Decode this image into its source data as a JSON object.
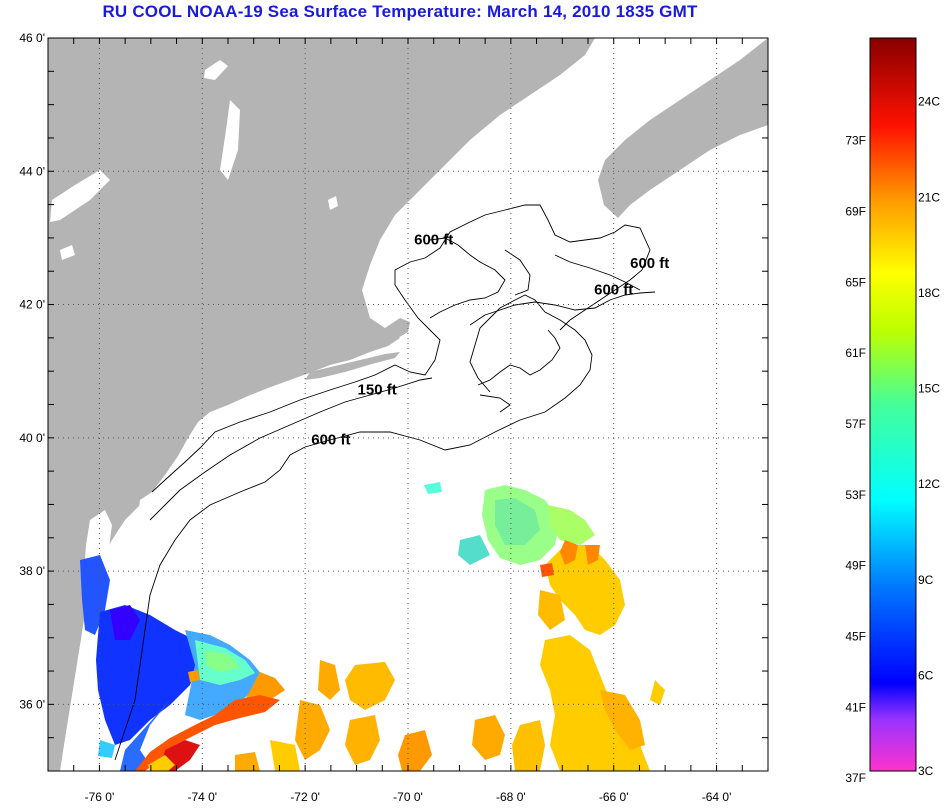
{
  "title": "RU COOL  NOAA-19  Sea Surface Temperature:  March 14, 2010 1835 GMT",
  "colors": {
    "land": "#b4b4b4",
    "ocean": "#ffffff",
    "grid": "#555555"
  },
  "map": {
    "lon_range": [
      -77,
      -63
    ],
    "lat_range": [
      35,
      46
    ],
    "lat_ticks": [
      {
        "value": 46,
        "label": "46 0'"
      },
      {
        "value": 44,
        "label": "44 0'"
      },
      {
        "value": 42,
        "label": "42 0'"
      },
      {
        "value": 40,
        "label": "40 0'"
      },
      {
        "value": 38,
        "label": "38 0'"
      },
      {
        "value": 36,
        "label": "36 0'"
      }
    ],
    "lon_ticks": [
      {
        "value": -76,
        "label": "-76 0'"
      },
      {
        "value": -74,
        "label": "-74 0'"
      },
      {
        "value": -72,
        "label": "-72 0'"
      },
      {
        "value": -70,
        "label": "-70 0'"
      },
      {
        "value": -68,
        "label": "-68 0'"
      },
      {
        "value": -66,
        "label": "-66 0'"
      },
      {
        "value": -64,
        "label": "-64 0'"
      }
    ],
    "contour_labels": [
      {
        "text": "600 ft",
        "lon": -69.5,
        "lat": 42.9
      },
      {
        "text": "600 ft",
        "lon": -65.3,
        "lat": 42.55
      },
      {
        "text": "600 ft",
        "lon": -66.0,
        "lat": 42.15
      },
      {
        "text": "150 ft",
        "lon": -70.6,
        "lat": 40.65
      },
      {
        "text": "600 ft",
        "lon": -71.5,
        "lat": 39.9
      }
    ]
  },
  "colorbar": {
    "range_c": [
      3,
      26
    ],
    "fahrenheit_labels": [
      "73F",
      "69F",
      "65F",
      "61F",
      "57F",
      "53F",
      "49F",
      "45F",
      "41F",
      "37F"
    ],
    "celsius_labels": [
      "24C",
      "21C",
      "18C",
      "15C",
      "12C",
      "9C",
      "6C",
      "3C"
    ]
  }
}
